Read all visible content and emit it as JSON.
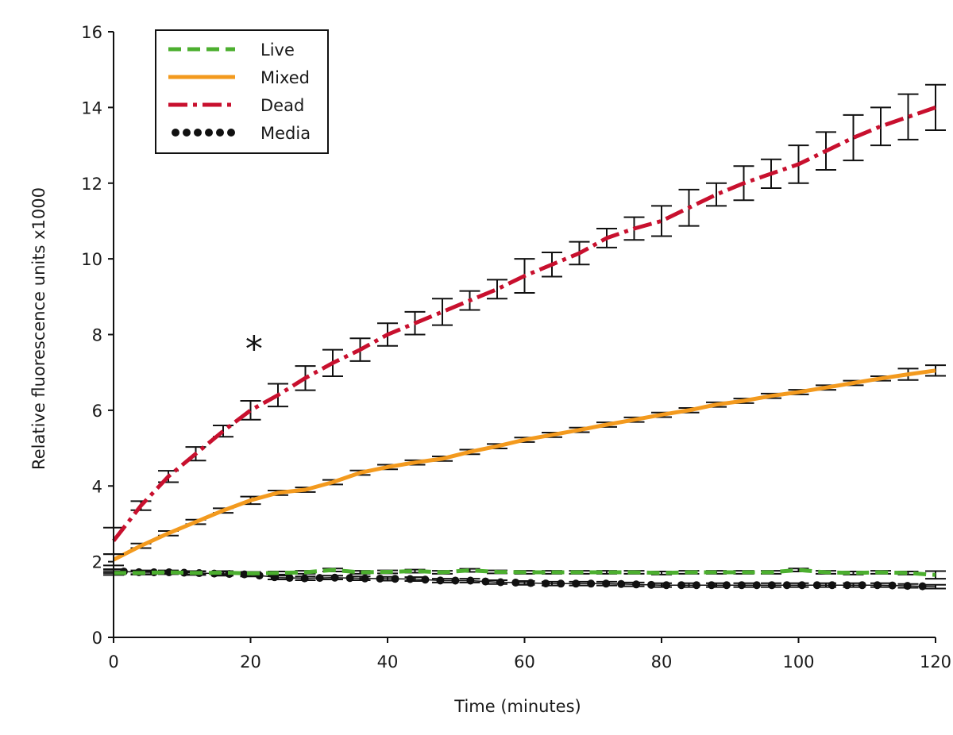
{
  "chart_data": {
    "type": "line",
    "title": "",
    "xlabel": "Time (minutes)",
    "ylabel": "Relative fluorescence units x1000",
    "xlim": [
      0,
      120
    ],
    "ylim": [
      0,
      16
    ],
    "xticks": [
      0,
      20,
      40,
      60,
      80,
      100,
      120
    ],
    "yticks": [
      0,
      2,
      4,
      6,
      8,
      10,
      12,
      14,
      16
    ],
    "grid": false,
    "legend_position": "top-left",
    "annotation": {
      "text": "*",
      "x": 20.5,
      "y": 7.6
    },
    "series": [
      {
        "name": "Live",
        "color": "#4caf2f",
        "style": "dashed",
        "x": [
          0,
          4,
          8,
          12,
          16,
          20,
          24,
          28,
          32,
          36,
          40,
          44,
          48,
          52,
          56,
          60,
          64,
          68,
          72,
          76,
          80,
          84,
          88,
          92,
          96,
          100,
          104,
          108,
          112,
          116,
          120
        ],
        "y": [
          1.7,
          1.7,
          1.72,
          1.7,
          1.71,
          1.69,
          1.7,
          1.72,
          1.78,
          1.72,
          1.73,
          1.75,
          1.72,
          1.77,
          1.73,
          1.72,
          1.72,
          1.72,
          1.72,
          1.72,
          1.7,
          1.72,
          1.72,
          1.72,
          1.72,
          1.78,
          1.72,
          1.7,
          1.72,
          1.7,
          1.65
        ],
        "err": [
          0.05,
          0.04,
          0.04,
          0.04,
          0.04,
          0.04,
          0.04,
          0.04,
          0.04,
          0.04,
          0.04,
          0.04,
          0.04,
          0.04,
          0.04,
          0.04,
          0.04,
          0.04,
          0.04,
          0.04,
          0.04,
          0.04,
          0.04,
          0.04,
          0.04,
          0.04,
          0.04,
          0.04,
          0.04,
          0.04,
          0.1
        ]
      },
      {
        "name": "Mixed",
        "color": "#f39a1e",
        "style": "solid",
        "x": [
          0,
          4,
          8,
          12,
          16,
          20,
          24,
          28,
          32,
          36,
          40,
          44,
          48,
          52,
          56,
          60,
          64,
          68,
          72,
          76,
          80,
          84,
          88,
          92,
          96,
          100,
          104,
          108,
          112,
          116,
          120
        ],
        "y": [
          2.05,
          2.42,
          2.75,
          3.05,
          3.35,
          3.62,
          3.82,
          3.9,
          4.1,
          4.35,
          4.5,
          4.62,
          4.72,
          4.9,
          5.05,
          5.22,
          5.35,
          5.48,
          5.62,
          5.75,
          5.88,
          6.0,
          6.15,
          6.25,
          6.38,
          6.48,
          6.6,
          6.72,
          6.84,
          6.95,
          7.05
        ],
        "err": [
          0.15,
          0.06,
          0.06,
          0.06,
          0.06,
          0.1,
          0.06,
          0.06,
          0.06,
          0.06,
          0.06,
          0.06,
          0.06,
          0.06,
          0.06,
          0.06,
          0.06,
          0.06,
          0.06,
          0.06,
          0.06,
          0.06,
          0.06,
          0.06,
          0.06,
          0.06,
          0.06,
          0.06,
          0.06,
          0.15,
          0.14
        ]
      },
      {
        "name": "Dead",
        "color": "#c8102e",
        "style": "dashdot",
        "x": [
          0,
          4,
          8,
          12,
          16,
          20,
          24,
          28,
          32,
          36,
          40,
          44,
          48,
          52,
          56,
          60,
          64,
          68,
          72,
          76,
          80,
          84,
          88,
          92,
          96,
          100,
          104,
          108,
          112,
          116,
          120
        ],
        "y": [
          2.55,
          3.48,
          4.25,
          4.85,
          5.45,
          6.0,
          6.4,
          6.85,
          7.25,
          7.6,
          8.0,
          8.3,
          8.6,
          8.9,
          9.2,
          9.55,
          9.85,
          10.15,
          10.55,
          10.8,
          11.0,
          11.35,
          11.7,
          12.0,
          12.25,
          12.5,
          12.85,
          13.2,
          13.5,
          13.75,
          14.0
        ],
        "err": [
          0.35,
          0.12,
          0.15,
          0.18,
          0.15,
          0.25,
          0.3,
          0.32,
          0.35,
          0.3,
          0.3,
          0.3,
          0.35,
          0.25,
          0.25,
          0.45,
          0.32,
          0.3,
          0.25,
          0.3,
          0.4,
          0.48,
          0.3,
          0.45,
          0.38,
          0.5,
          0.5,
          0.6,
          0.5,
          0.6,
          0.6
        ]
      },
      {
        "name": "Media",
        "color": "#111111",
        "style": "dotted",
        "x": [
          0,
          4,
          8,
          12,
          16,
          20,
          24,
          28,
          32,
          36,
          40,
          44,
          48,
          52,
          56,
          60,
          64,
          68,
          72,
          76,
          80,
          84,
          88,
          92,
          96,
          100,
          104,
          108,
          112,
          116,
          120
        ],
        "y": [
          1.75,
          1.72,
          1.72,
          1.7,
          1.68,
          1.66,
          1.58,
          1.56,
          1.58,
          1.56,
          1.55,
          1.54,
          1.5,
          1.5,
          1.46,
          1.44,
          1.42,
          1.42,
          1.42,
          1.4,
          1.38,
          1.38,
          1.38,
          1.38,
          1.38,
          1.38,
          1.38,
          1.38,
          1.38,
          1.36,
          1.34
        ],
        "err": [
          0.05,
          0.05,
          0.05,
          0.05,
          0.05,
          0.05,
          0.05,
          0.05,
          0.05,
          0.05,
          0.05,
          0.05,
          0.05,
          0.05,
          0.05,
          0.05,
          0.05,
          0.05,
          0.05,
          0.05,
          0.05,
          0.05,
          0.05,
          0.05,
          0.05,
          0.05,
          0.05,
          0.05,
          0.05,
          0.05,
          0.05
        ]
      }
    ]
  }
}
